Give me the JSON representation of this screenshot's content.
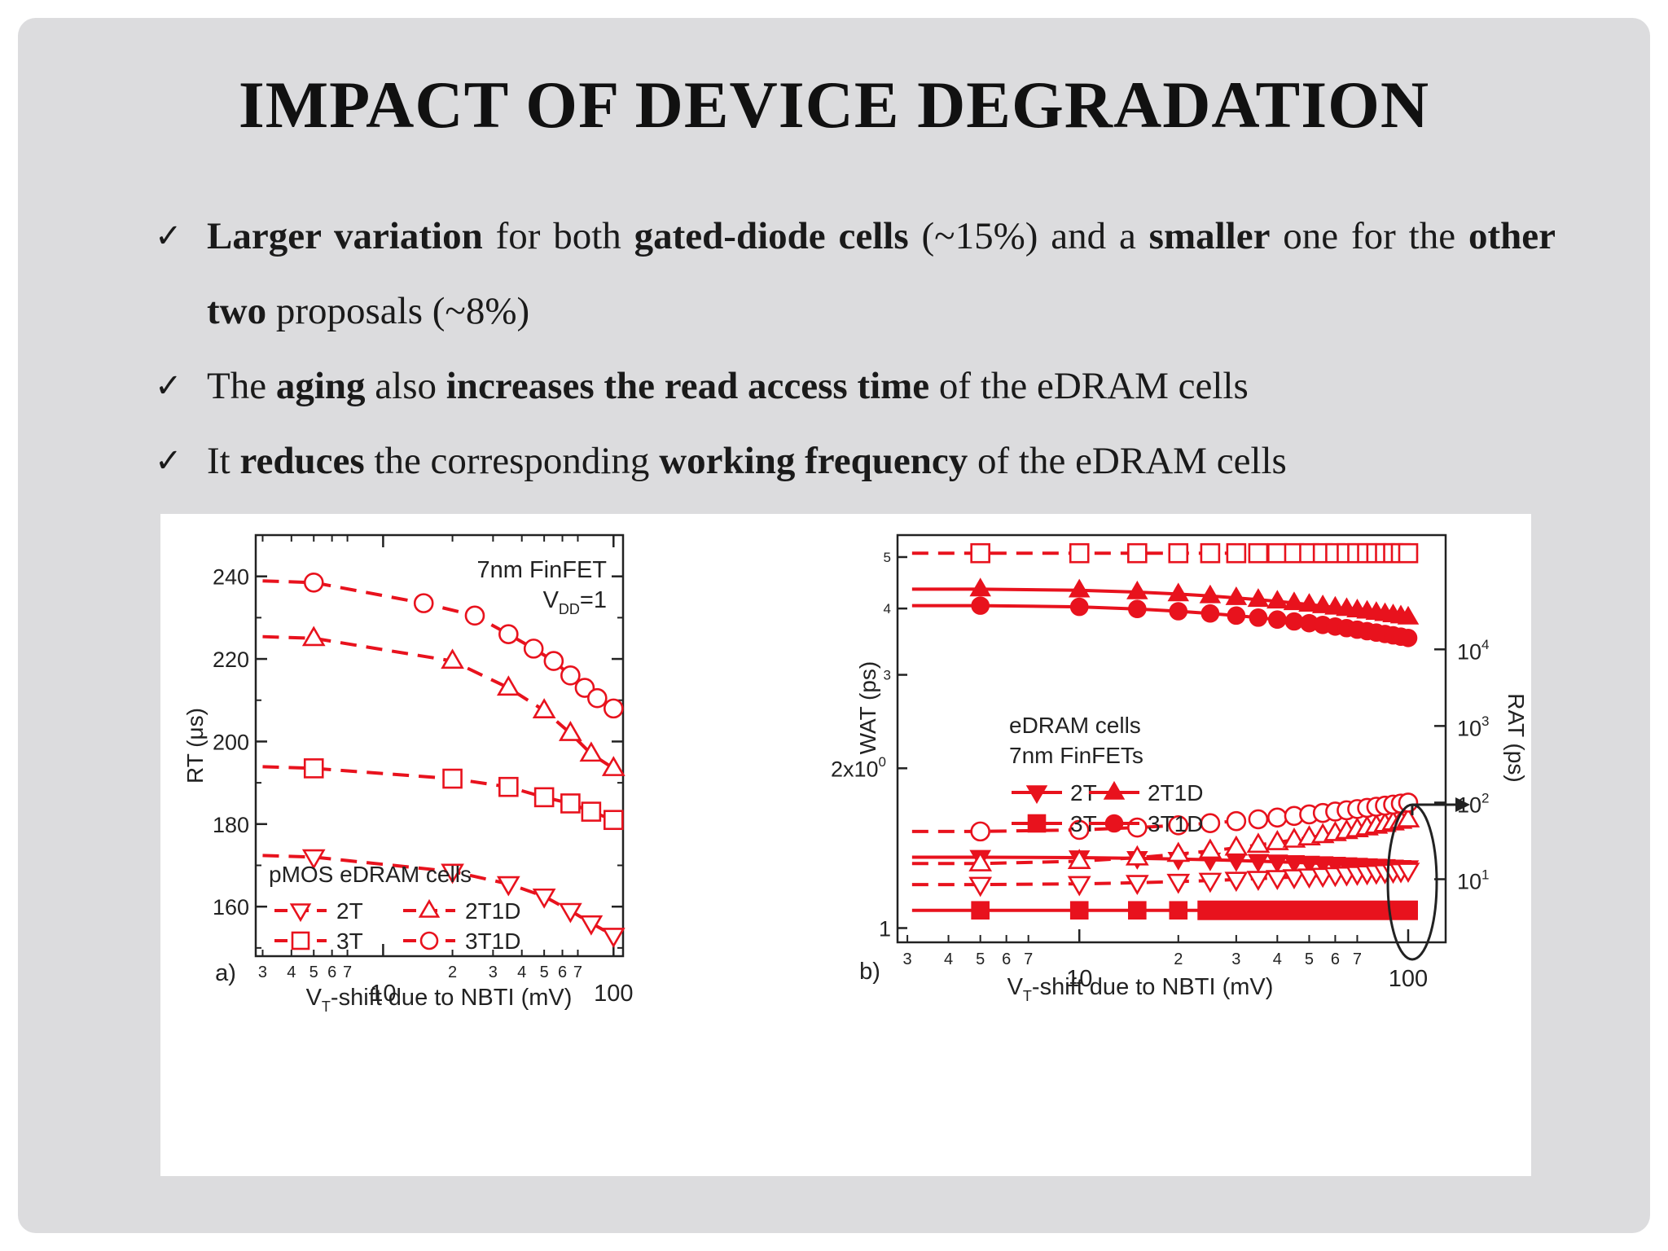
{
  "slide": {
    "title": "IMPACT OF DEVICE DEGRADATION",
    "bullets": [
      {
        "segments": [
          {
            "t": "Larger variation",
            "b": true
          },
          {
            "t": " for both ",
            "b": false
          },
          {
            "t": "gated-diode cells",
            "b": true
          },
          {
            "t": " (~15%) and a ",
            "b": false
          },
          {
            "t": "smaller",
            "b": true
          },
          {
            "t": " one for the ",
            "b": false
          },
          {
            "t": "other two",
            "b": true
          },
          {
            "t": " proposals (~8%)",
            "b": false
          }
        ]
      },
      {
        "segments": [
          {
            "t": "The ",
            "b": false
          },
          {
            "t": "aging",
            "b": true
          },
          {
            "t": " also ",
            "b": false
          },
          {
            "t": "increases the read access time",
            "b": true
          },
          {
            "t": " of the eDRAM cells",
            "b": false
          }
        ]
      },
      {
        "segments": [
          {
            "t": "It ",
            "b": false
          },
          {
            "t": "reduces",
            "b": true
          },
          {
            "t": " the corresponding ",
            "b": false
          },
          {
            "t": "working frequency",
            "b": true
          },
          {
            "t": " of the eDRAM cells",
            "b": false
          }
        ]
      }
    ],
    "check_symbol": "✓"
  },
  "colors": {
    "series": "#e8121d",
    "axis": "#222222",
    "background": "#dcdcde"
  },
  "chart_data": [
    {
      "type": "line",
      "panel_label": "a)",
      "xlabel_main": "V",
      "xlabel_sub": "T",
      "xlabel_rest": "-shift due to NBTI (mV)",
      "ylabel": "RT (μs)",
      "xscale": "log",
      "xlim": [
        2.8,
        110
      ],
      "ylim": [
        148,
        250
      ],
      "xticks_major": [
        {
          "v": 10,
          "label": "10"
        },
        {
          "v": 100,
          "label": "100"
        }
      ],
      "xticks_minor": [
        {
          "v": 3,
          "label": "3"
        },
        {
          "v": 4,
          "label": "4"
        },
        {
          "v": 5,
          "label": "5"
        },
        {
          "v": 6,
          "label": "6"
        },
        {
          "v": 7,
          "label": "7"
        },
        {
          "v": 20,
          "label": "2"
        },
        {
          "v": 30,
          "label": "3"
        },
        {
          "v": 40,
          "label": "4"
        },
        {
          "v": 50,
          "label": "5"
        },
        {
          "v": 60,
          "label": "6"
        },
        {
          "v": 70,
          "label": "7"
        }
      ],
      "yticks": [
        {
          "v": 160,
          "label": "160"
        },
        {
          "v": 180,
          "label": "180"
        },
        {
          "v": 200,
          "label": "200"
        },
        {
          "v": 220,
          "label": "220"
        },
        {
          "v": 240,
          "label": "240"
        }
      ],
      "annotation_line1": "7nm FinFET",
      "annotation_line2_main": "V",
      "annotation_line2_sub": "DD",
      "annotation_line2_rest": "=1",
      "legend": {
        "title": "pMOS eDRAM cells",
        "position": "bottom-left"
      },
      "series": [
        {
          "name": "2T",
          "marker": "triangle-down",
          "style": "dashed",
          "x": [
            5,
            20,
            35,
            50,
            65,
            80,
            100
          ],
          "y": [
            172,
            168.5,
            165.5,
            162.5,
            159,
            156,
            153
          ]
        },
        {
          "name": "2T1D",
          "marker": "triangle-up",
          "style": "dashed",
          "x": [
            5,
            20,
            35,
            50,
            65,
            80,
            100
          ],
          "y": [
            225,
            219.5,
            213,
            207.5,
            202,
            197,
            193.5
          ]
        },
        {
          "name": "3T",
          "marker": "square",
          "style": "dashed",
          "x": [
            5,
            20,
            35,
            50,
            65,
            80,
            100
          ],
          "y": [
            193.5,
            191,
            189,
            186.5,
            185,
            183,
            181
          ]
        },
        {
          "name": "3T1D",
          "marker": "circle",
          "style": "dashed",
          "x": [
            5,
            15,
            25,
            35,
            45,
            55,
            65,
            75,
            85,
            100
          ],
          "y": [
            238.5,
            233.5,
            230.5,
            226,
            222.5,
            219.5,
            216,
            213,
            210.5,
            208
          ]
        }
      ]
    },
    {
      "type": "line",
      "panel_label": "b)",
      "xlabel_main": "V",
      "xlabel_sub": "T",
      "xlabel_rest": "-shift due to NBTI (mV)",
      "ylabel": "WAT (ps)",
      "y2label": "RAT (ps)",
      "xscale": "log",
      "yscale": "log",
      "y2scale": "log",
      "xlim": [
        2.8,
        130
      ],
      "ylim": [
        0.94,
        5.5
      ],
      "y2lim": [
        1.5,
        310000
      ],
      "xticks_major": [
        {
          "v": 10,
          "label": "10"
        },
        {
          "v": 100,
          "label": "100"
        }
      ],
      "xticks_minor": [
        {
          "v": 3,
          "label": "3"
        },
        {
          "v": 4,
          "label": "4"
        },
        {
          "v": 5,
          "label": "5"
        },
        {
          "v": 6,
          "label": "6"
        },
        {
          "v": 7,
          "label": "7"
        },
        {
          "v": 20,
          "label": "2"
        },
        {
          "v": 30,
          "label": "3"
        },
        {
          "v": 40,
          "label": "4"
        },
        {
          "v": 50,
          "label": "5"
        },
        {
          "v": 60,
          "label": "6"
        },
        {
          "v": 70,
          "label": "7"
        }
      ],
      "yticks": [
        {
          "v": 1,
          "label": "1"
        },
        {
          "v": 3,
          "label": "3"
        },
        {
          "v": 4,
          "label": "4"
        },
        {
          "v": 5,
          "label": "5"
        }
      ],
      "ytick_special": {
        "v": 2,
        "label_main": "2x10",
        "label_sup": "0"
      },
      "y2ticks": [
        {
          "v": 10,
          "label_main": "10",
          "label_sup": "1"
        },
        {
          "v": 100,
          "label_main": "10",
          "label_sup": "2"
        },
        {
          "v": 1000,
          "label_main": "10",
          "label_sup": "3"
        },
        {
          "v": 10000,
          "label_main": "10",
          "label_sup": "4"
        }
      ],
      "legend": {
        "title_line1": "eDRAM cells",
        "title_line2": "7nm FinFETs",
        "position": "center-left"
      },
      "series_wat": [
        {
          "name": "3T",
          "marker": "square",
          "filled": true,
          "style": "solid",
          "y_from": 1.08,
          "y_to": 1.08
        },
        {
          "name": "2T",
          "marker": "triangle-down",
          "filled": true,
          "style": "solid",
          "y_from": 1.36,
          "y_to": 1.3
        },
        {
          "name": "3T1D",
          "marker": "circle",
          "filled": true,
          "style": "solid",
          "y_from": 4.05,
          "y_to": 3.52
        },
        {
          "name": "2T1D",
          "marker": "triangle-up",
          "filled": true,
          "style": "solid",
          "y_from": 4.35,
          "y_to": 3.85
        }
      ],
      "series_rat": [
        {
          "name": "3T",
          "marker": "square",
          "style": "dashed",
          "y_from": 180000,
          "y_to": 180000
        },
        {
          "name": "2T",
          "marker": "triangle-down",
          "style": "dashed",
          "y_from": 8.5,
          "y_to": 13
        },
        {
          "name": "2T1D",
          "marker": "triangle-up",
          "style": "dashed",
          "y_from": 16,
          "y_to": 60
        },
        {
          "name": "3T1D",
          "marker": "circle",
          "style": "dashed",
          "y_from": 42,
          "y_to": 100
        }
      ],
      "x_markers": [
        5,
        10,
        15,
        20,
        25,
        30,
        35,
        40,
        45,
        50,
        55,
        60,
        65,
        70,
        75,
        80,
        85,
        90,
        95,
        100
      ],
      "x_markers_sparse": [
        5,
        10,
        15,
        20
      ]
    }
  ]
}
